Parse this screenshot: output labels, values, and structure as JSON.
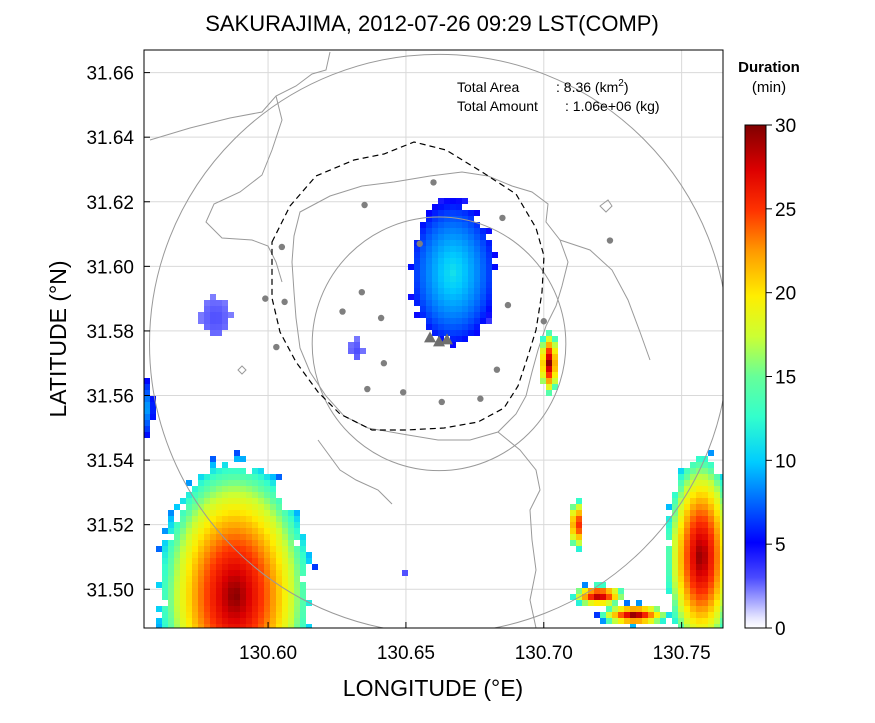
{
  "chart_data": {
    "type": "heatmap",
    "title": "SAKURAJIMA, 2012-07-26 09:29 LST(COMP)",
    "xlabel": "LONGITUDE (°E)",
    "ylabel": "LATITUDE (°N)",
    "xlim": [
      130.555,
      130.765
    ],
    "ylim": [
      31.488,
      31.667
    ],
    "xticks": [
      {
        "value": 130.6,
        "label": "130.60"
      },
      {
        "value": 130.65,
        "label": "130.65"
      },
      {
        "value": 130.7,
        "label": "130.70"
      },
      {
        "value": 130.75,
        "label": "130.75"
      }
    ],
    "yticks": [
      {
        "value": 31.5,
        "label": "31.50"
      },
      {
        "value": 31.52,
        "label": "31.52"
      },
      {
        "value": 31.54,
        "label": "31.54"
      },
      {
        "value": 31.56,
        "label": "31.56"
      },
      {
        "value": 31.58,
        "label": "31.58"
      },
      {
        "value": 31.6,
        "label": "31.60"
      },
      {
        "value": 31.62,
        "label": "31.62"
      },
      {
        "value": 31.64,
        "label": "31.64"
      },
      {
        "value": 31.66,
        "label": "31.66"
      }
    ],
    "grid": true,
    "annotations": {
      "area_label": "Total Area",
      "area_value": ": 8.36 (km",
      "area_unit_sup": "2",
      "area_close": ")",
      "amount_label": "Total Amount",
      "amount_value": ": 1.06e+06 (kg)"
    },
    "colorbar": {
      "title_line1": "Duration",
      "title_line2": "(min)",
      "min": 0,
      "max": 30,
      "ticks": [
        {
          "value": 0,
          "label": "0"
        },
        {
          "value": 5,
          "label": "5"
        },
        {
          "value": 10,
          "label": "10"
        },
        {
          "value": 15,
          "label": "15"
        },
        {
          "value": 20,
          "label": "20"
        },
        {
          "value": 25,
          "label": "25"
        },
        {
          "value": 30,
          "label": "30"
        }
      ]
    },
    "range_circles": [
      {
        "center": [
          130.662,
          31.576
        ],
        "radius_lon": 0.105
      },
      {
        "center": [
          130.662,
          31.576
        ],
        "radius_lon": 0.046
      }
    ],
    "vent": [
      130.662,
      31.578
    ],
    "stations": [
      [
        130.66,
        31.626
      ],
      [
        130.635,
        31.619
      ],
      [
        130.685,
        31.615
      ],
      [
        130.605,
        31.606
      ],
      [
        130.655,
        31.607
      ],
      [
        130.724,
        31.608
      ],
      [
        130.599,
        31.59
      ],
      [
        130.606,
        31.589
      ],
      [
        130.627,
        31.586
      ],
      [
        130.634,
        31.592
      ],
      [
        130.641,
        31.584
      ],
      [
        130.687,
        31.588
      ],
      [
        130.7,
        31.583
      ],
      [
        130.603,
        31.575
      ],
      [
        130.642,
        31.57
      ],
      [
        130.683,
        31.568
      ],
      [
        130.636,
        31.562
      ],
      [
        130.649,
        31.561
      ],
      [
        130.663,
        31.558
      ],
      [
        130.677,
        31.559
      ]
    ],
    "echo_cells": [
      {
        "lon": 130.667,
        "lat": 31.598,
        "rlon": 0.017,
        "rlat": 0.024,
        "peak": 11,
        "edge": 3
      },
      {
        "lon": 130.702,
        "lat": 31.57,
        "rlon": 0.004,
        "rlat": 0.011,
        "peak": 30,
        "edge": 5
      },
      {
        "lon": 130.712,
        "lat": 31.52,
        "rlon": 0.003,
        "rlat": 0.009,
        "peak": 29,
        "edge": 4
      },
      {
        "lon": 130.72,
        "lat": 31.498,
        "rlon": 0.011,
        "rlat": 0.004,
        "peak": 30,
        "edge": 3
      },
      {
        "lon": 130.733,
        "lat": 31.492,
        "rlon": 0.014,
        "rlat": 0.004,
        "peak": 30,
        "edge": 3
      },
      {
        "lon": 130.581,
        "lat": 31.584,
        "rlon": 0.006,
        "rlat": 0.007,
        "peak": 3,
        "edge": 2
      },
      {
        "lon": 130.632,
        "lat": 31.574,
        "rlon": 0.003,
        "rlat": 0.004,
        "peak": 3,
        "edge": 2
      },
      {
        "lon": 130.556,
        "lat": 31.556,
        "rlon": 0.003,
        "rlat": 0.01,
        "peak": 9,
        "edge": 3
      },
      {
        "lon": 130.65,
        "lat": 31.505,
        "rlon": 0.002,
        "rlat": 0.002,
        "peak": 3,
        "edge": 2
      },
      {
        "lon": 130.588,
        "lat": 31.498,
        "rlon": 0.03,
        "rlat": 0.045,
        "peak": 30,
        "edge": 4
      },
      {
        "lon": 130.757,
        "lat": 31.51,
        "rlon": 0.014,
        "rlat": 0.035,
        "peak": 30,
        "edge": 4
      }
    ],
    "colors": {
      "grid": "#d9d9d9",
      "coast": "#9a9a9a",
      "circle": "#999999",
      "station": "#7f7f7f",
      "vent": "#6f6f6f",
      "dash": "#000000"
    }
  }
}
